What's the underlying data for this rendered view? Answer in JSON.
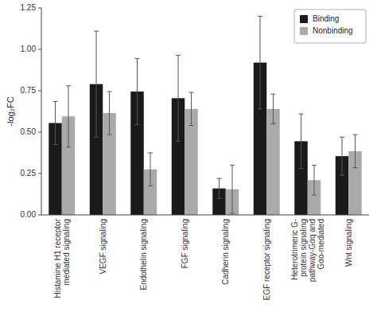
{
  "chart_data": {
    "type": "bar",
    "categories": [
      "Histamine H1 receptor\nmediated signaling",
      "VEGF signaling",
      "Endothelin signaling",
      "FGF signaling",
      "Cadherin signaling",
      "EGF receptor signaling",
      "Heterotrimeric G-\nprotein signaling\npathway-Gαq and\nGαo-mediated",
      "Wnt signaling"
    ],
    "series": [
      {
        "name": "Binding",
        "color": "#1a1a1a",
        "values": [
          0.555,
          0.79,
          0.745,
          0.705,
          0.16,
          0.92,
          0.445,
          0.355
        ],
        "errors": [
          0.13,
          0.32,
          0.2,
          0.26,
          0.06,
          0.28,
          0.165,
          0.115
        ]
      },
      {
        "name": "Nonbinding",
        "color": "#aaaaaa",
        "values": [
          0.595,
          0.615,
          0.275,
          0.64,
          0.155,
          0.64,
          0.21,
          0.385
        ],
        "errors": [
          0.185,
          0.13,
          0.1,
          0.1,
          0.145,
          0.09,
          0.09,
          0.1
        ]
      }
    ],
    "y_label": "-log₂FC",
    "ylim": [
      0,
      1.25
    ],
    "yticks": [
      {
        "value": 0,
        "label": "0.00"
      },
      0.25,
      {
        "value": 0.5,
        "label": "0.50"
      },
      0.75,
      {
        "value": 1,
        "label": "1.00"
      },
      1.25
    ],
    "grid": false,
    "legend": "upper right"
  }
}
